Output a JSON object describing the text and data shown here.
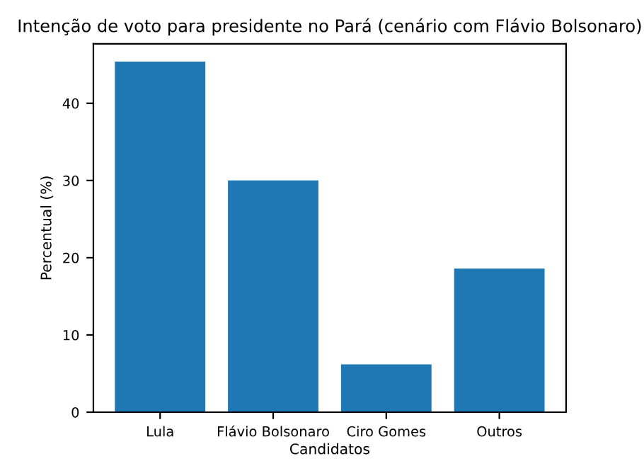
{
  "chart_data": {
    "type": "bar",
    "title": "Intenção de voto para presidente no Pará (cenário com Flávio Bolsonaro)",
    "xlabel": "Candidatos",
    "ylabel": "Percentual (%)",
    "categories": [
      "Lula",
      "Flávio Bolsonaro",
      "Ciro Gomes",
      "Outros"
    ],
    "values": [
      45.4,
      30.0,
      6.2,
      18.6
    ],
    "color": "#1f77b4",
    "ylim": [
      0,
      47.7
    ],
    "yticks": [
      0,
      10,
      20,
      30,
      40
    ],
    "grid": false,
    "legend": false
  }
}
